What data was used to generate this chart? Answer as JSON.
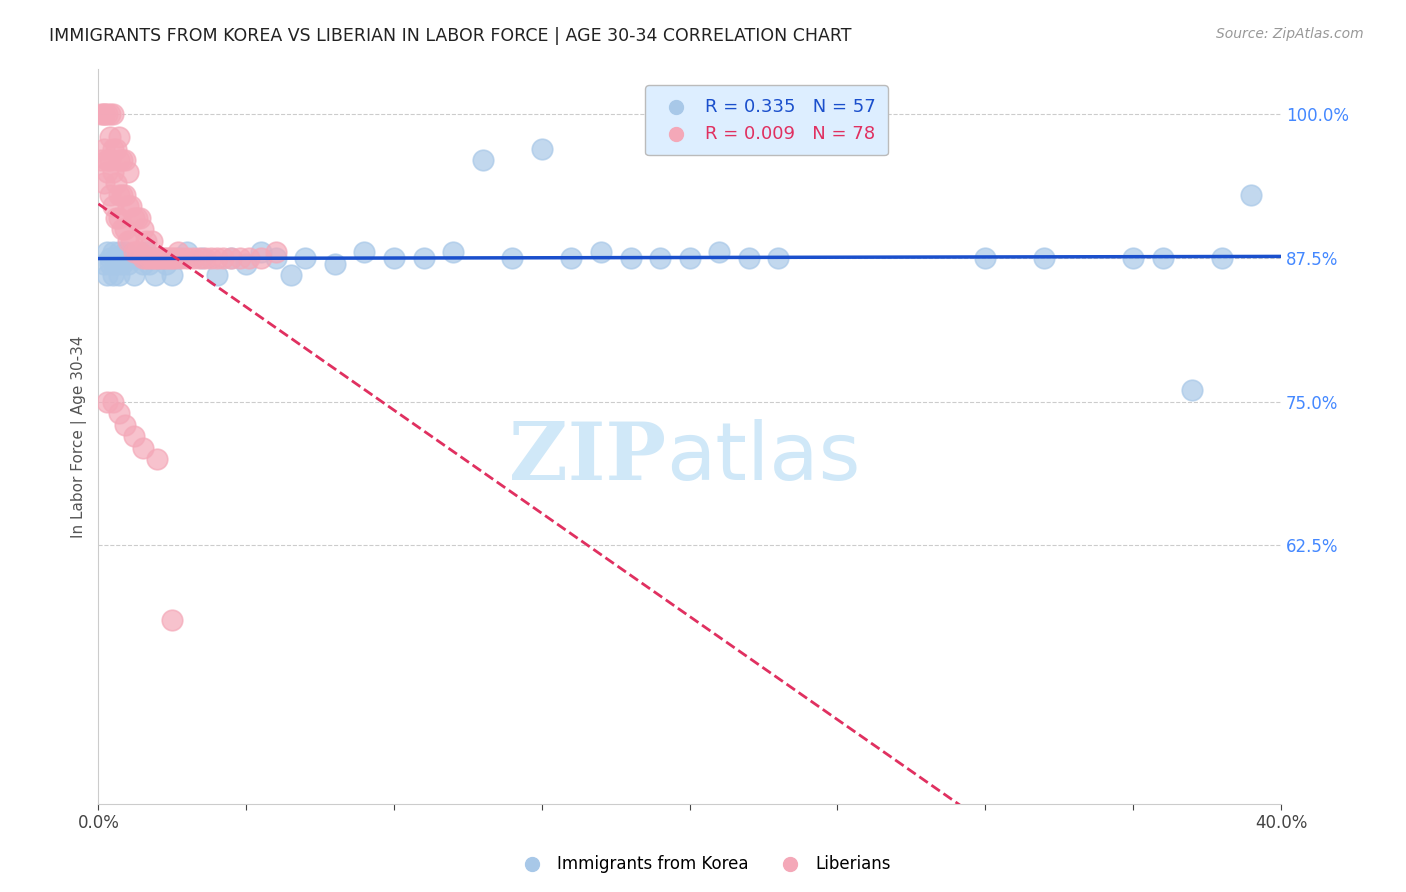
{
  "title": "IMMIGRANTS FROM KOREA VS LIBERIAN IN LABOR FORCE | AGE 30-34 CORRELATION CHART",
  "source_text": "Source: ZipAtlas.com",
  "ylabel": "In Labor Force | Age 30-34",
  "xlim": [
    0.0,
    0.4
  ],
  "ylim": [
    0.4,
    1.04
  ],
  "xticks": [
    0.0,
    0.05,
    0.1,
    0.15,
    0.2,
    0.25,
    0.3,
    0.35,
    0.4
  ],
  "yticks_right": [
    1.0,
    0.875,
    0.75,
    0.625
  ],
  "ytick_labels_right": [
    "100.0%",
    "87.5%",
    "75.0%",
    "62.5%"
  ],
  "korea_R": 0.335,
  "korea_N": 57,
  "liberia_R": 0.009,
  "liberia_N": 78,
  "korea_color": "#a8c8e8",
  "liberia_color": "#f4a8b8",
  "korea_line_color": "#1a4fcc",
  "liberia_line_color": "#e03060",
  "legend_box_color": "#ddeeff",
  "watermark_color": "#d0e8f8",
  "korea_x": [
    0.002,
    0.003,
    0.003,
    0.004,
    0.004,
    0.005,
    0.005,
    0.006,
    0.006,
    0.007,
    0.007,
    0.008,
    0.009,
    0.01,
    0.011,
    0.012,
    0.013,
    0.015,
    0.016,
    0.017,
    0.019,
    0.021,
    0.023,
    0.025,
    0.027,
    0.03,
    0.035,
    0.04,
    0.045,
    0.05,
    0.055,
    0.06,
    0.065,
    0.07,
    0.08,
    0.09,
    0.1,
    0.11,
    0.12,
    0.13,
    0.14,
    0.15,
    0.16,
    0.17,
    0.18,
    0.19,
    0.2,
    0.21,
    0.22,
    0.23,
    0.3,
    0.32,
    0.35,
    0.36,
    0.37,
    0.38,
    0.39
  ],
  "korea_y": [
    0.87,
    0.86,
    0.88,
    0.875,
    0.87,
    0.88,
    0.86,
    0.875,
    0.87,
    0.88,
    0.86,
    0.87,
    0.88,
    0.87,
    0.875,
    0.86,
    0.875,
    0.87,
    0.88,
    0.87,
    0.86,
    0.875,
    0.87,
    0.86,
    0.875,
    0.88,
    0.875,
    0.86,
    0.875,
    0.87,
    0.88,
    0.875,
    0.86,
    0.875,
    0.87,
    0.88,
    0.875,
    0.875,
    0.88,
    0.96,
    0.875,
    0.97,
    0.875,
    0.88,
    0.875,
    0.875,
    0.875,
    0.88,
    0.875,
    0.875,
    0.875,
    0.875,
    0.875,
    0.875,
    0.76,
    0.875,
    0.93
  ],
  "liberia_x": [
    0.001,
    0.001,
    0.002,
    0.002,
    0.002,
    0.002,
    0.003,
    0.003,
    0.003,
    0.004,
    0.004,
    0.004,
    0.004,
    0.005,
    0.005,
    0.005,
    0.005,
    0.006,
    0.006,
    0.006,
    0.007,
    0.007,
    0.007,
    0.007,
    0.008,
    0.008,
    0.008,
    0.009,
    0.009,
    0.009,
    0.01,
    0.01,
    0.01,
    0.011,
    0.011,
    0.012,
    0.012,
    0.013,
    0.013,
    0.014,
    0.014,
    0.015,
    0.015,
    0.016,
    0.016,
    0.017,
    0.018,
    0.018,
    0.019,
    0.02,
    0.021,
    0.022,
    0.023,
    0.024,
    0.025,
    0.026,
    0.027,
    0.028,
    0.03,
    0.032,
    0.034,
    0.036,
    0.038,
    0.04,
    0.042,
    0.045,
    0.048,
    0.051,
    0.055,
    0.06,
    0.003,
    0.005,
    0.007,
    0.009,
    0.012,
    0.015,
    0.02,
    0.025
  ],
  "liberia_y": [
    0.96,
    1.0,
    0.94,
    0.97,
    1.0,
    1.0,
    0.95,
    0.96,
    1.0,
    0.93,
    0.96,
    0.98,
    1.0,
    0.92,
    0.95,
    0.97,
    1.0,
    0.91,
    0.94,
    0.97,
    0.91,
    0.93,
    0.96,
    0.98,
    0.9,
    0.93,
    0.96,
    0.9,
    0.93,
    0.96,
    0.89,
    0.92,
    0.95,
    0.89,
    0.92,
    0.88,
    0.91,
    0.88,
    0.91,
    0.88,
    0.91,
    0.875,
    0.9,
    0.875,
    0.89,
    0.875,
    0.875,
    0.89,
    0.875,
    0.875,
    0.875,
    0.875,
    0.875,
    0.875,
    0.875,
    0.875,
    0.88,
    0.875,
    0.875,
    0.875,
    0.875,
    0.875,
    0.875,
    0.875,
    0.875,
    0.875,
    0.875,
    0.875,
    0.875,
    0.88,
    0.75,
    0.75,
    0.74,
    0.73,
    0.72,
    0.71,
    0.7,
    0.56
  ]
}
